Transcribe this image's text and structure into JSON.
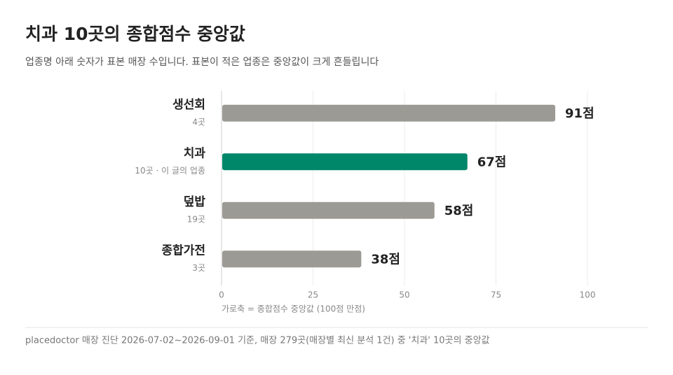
{
  "chart_data": {
    "type": "bar",
    "orientation": "horizontal",
    "title": "치과 10곳의 종합점수 중앙값",
    "subtitle": "업종명 아래 숫자가 표본 매장 수입니다. 표본이 적은 업종은 중앙값이 크게 흔들립니다",
    "categories": [
      "생선회",
      "치과",
      "덮밥",
      "종합가전"
    ],
    "category_notes": [
      "4곳",
      "10곳 · 이 글의 업종",
      "19곳",
      "3곳"
    ],
    "values": [
      91,
      67,
      58,
      38
    ],
    "value_labels": [
      "91점",
      "67점",
      "58점",
      "38점"
    ],
    "colors": [
      "#9c9a94",
      "#00876a",
      "#9c9a94",
      "#9c9a94"
    ],
    "xlim": [
      0,
      100
    ],
    "xticks": [
      0,
      25,
      50,
      75,
      100
    ],
    "grid": true,
    "x_label": "가로축 = 종합점수 중앙값 (100점 만점)",
    "source": "placedoctor 매장 진단 2026-07-02~2026-09-01 기준, 매장 279곳(매장별 최신 분석 1건) 중 '치과' 10곳의 중앙값"
  }
}
